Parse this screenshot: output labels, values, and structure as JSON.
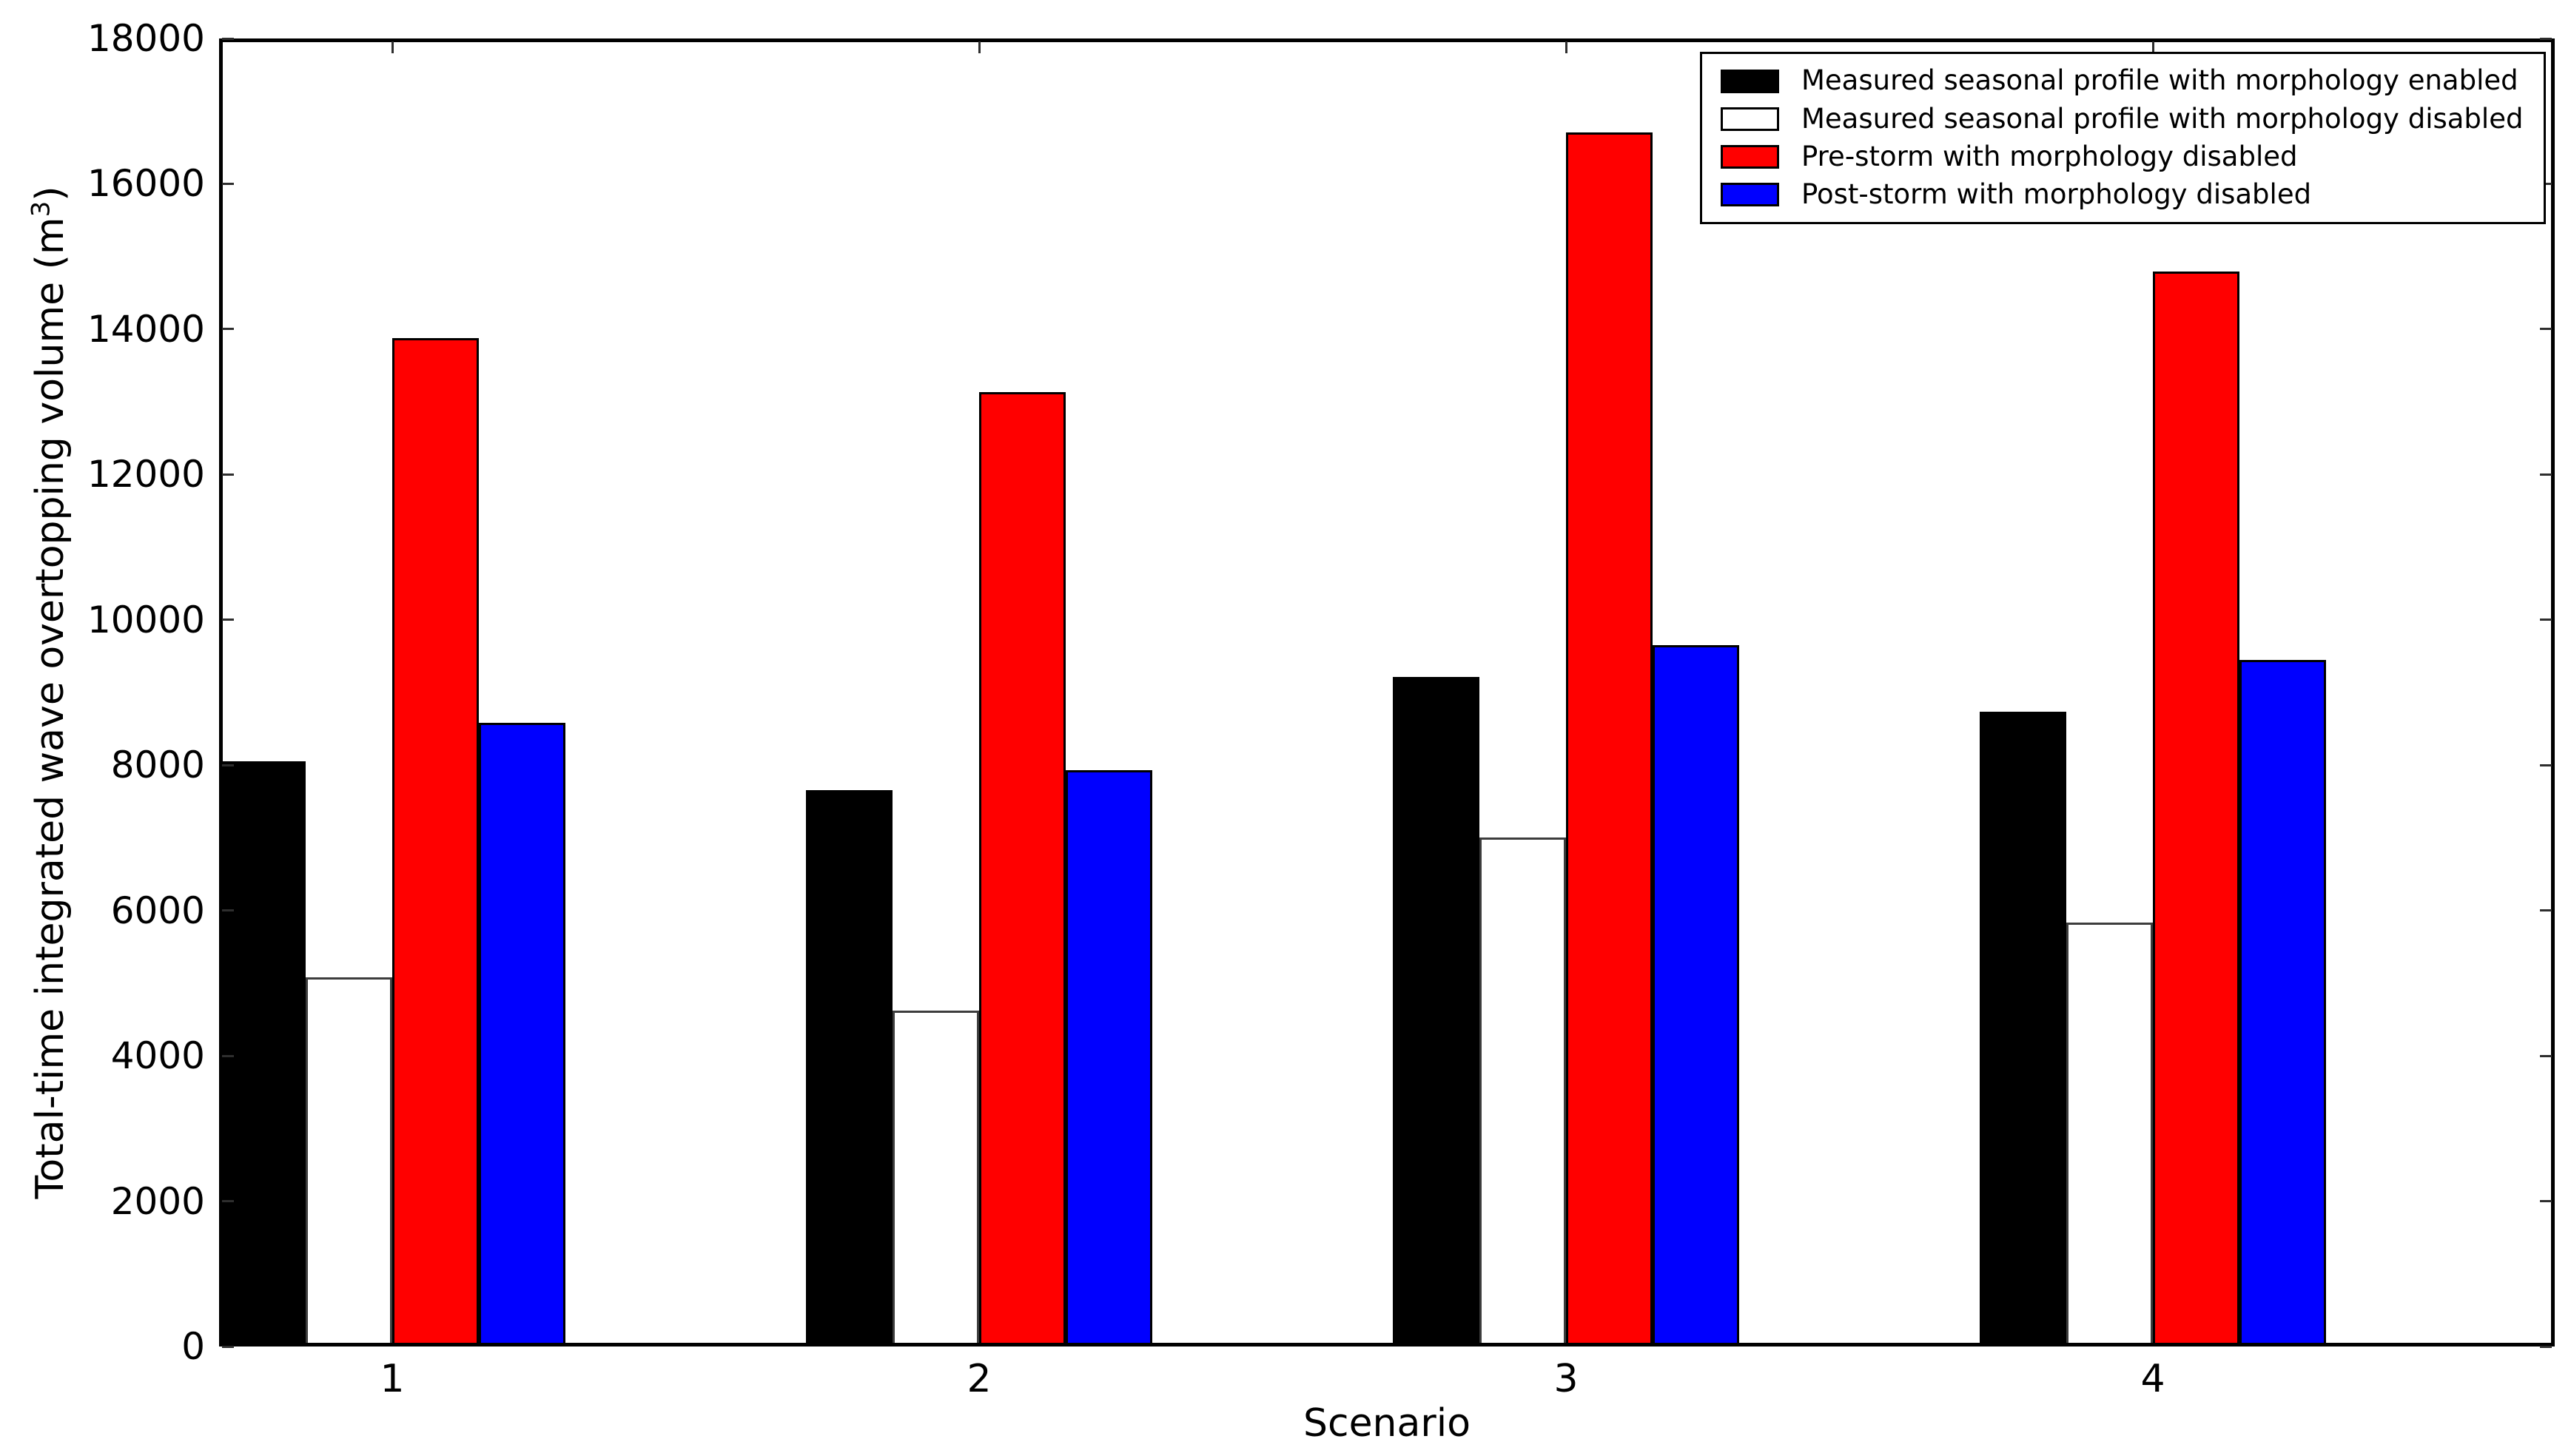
{
  "figure": {
    "xlabel": "Scenario",
    "ylabel_parts": {
      "prefix": "Total-time integrated wave overtopping volume (m",
      "sup": "3",
      "suffix": ")"
    }
  },
  "chart_data": {
    "type": "bar",
    "title": "",
    "xlabel": "Scenario",
    "ylabel": "Total-time integrated wave overtopping volume (m^3)",
    "categories": [
      "1",
      "2",
      "3",
      "4"
    ],
    "series": [
      {
        "name": "Measured seasonal profile with morphology enabled",
        "color": "#000000",
        "values": [
          8050,
          7660,
          9210,
          8740
        ]
      },
      {
        "name": "Measured seasonal profile with morphology disabled",
        "color": "#ffffff",
        "values": [
          5080,
          4620,
          7000,
          5830
        ]
      },
      {
        "name": "Pre-storm with morphology disabled",
        "color": "#ff0000",
        "values": [
          13880,
          13130,
          16710,
          14790
        ]
      },
      {
        "name": "Post-storm with morphology disabled",
        "color": "#0000ff",
        "values": [
          8580,
          7930,
          9650,
          9450
        ]
      }
    ],
    "ylim": [
      0,
      18000
    ],
    "yticks": [
      0,
      2000,
      4000,
      6000,
      8000,
      10000,
      12000,
      14000,
      16000,
      18000
    ],
    "xticks": [
      "1",
      "2",
      "3",
      "4"
    ],
    "grid": false,
    "legend_position": "upper right",
    "bar_edge_color": "#000000",
    "background_color": "#ffffff"
  }
}
